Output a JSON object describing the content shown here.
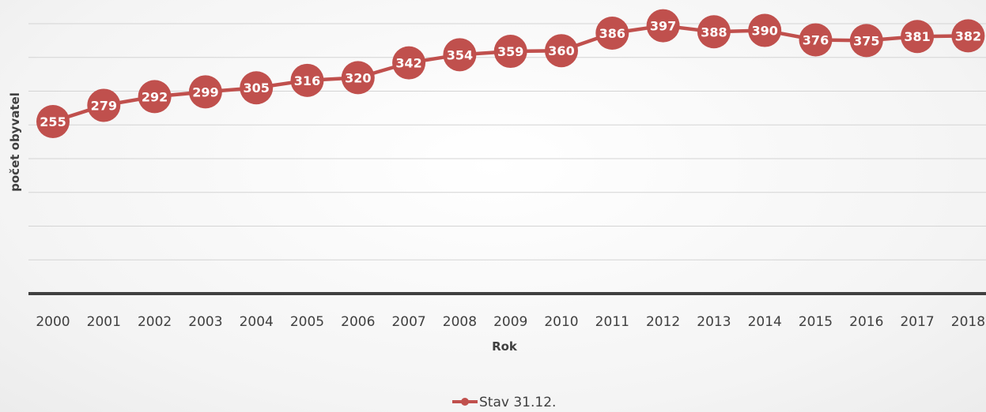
{
  "chart_data": {
    "type": "line",
    "title": "",
    "xlabel": "Rok",
    "ylabel": "počet obyvatel",
    "categories": [
      "2000",
      "2001",
      "2002",
      "2003",
      "2004",
      "2005",
      "2006",
      "2007",
      "2008",
      "2009",
      "2010",
      "2011",
      "2012",
      "2013",
      "2014",
      "2015",
      "2016",
      "2017",
      "2018"
    ],
    "series": [
      {
        "name": "Stav 31.12.",
        "values": [
          255,
          279,
          292,
          299,
          305,
          316,
          320,
          342,
          354,
          359,
          360,
          386,
          397,
          388,
          390,
          376,
          375,
          381,
          382
        ],
        "color": "#c0504d"
      }
    ],
    "ylim": [
      0,
      400
    ],
    "grid": true,
    "y_tick_labels_visible": false,
    "data_labels": true,
    "legend": "bottom"
  }
}
